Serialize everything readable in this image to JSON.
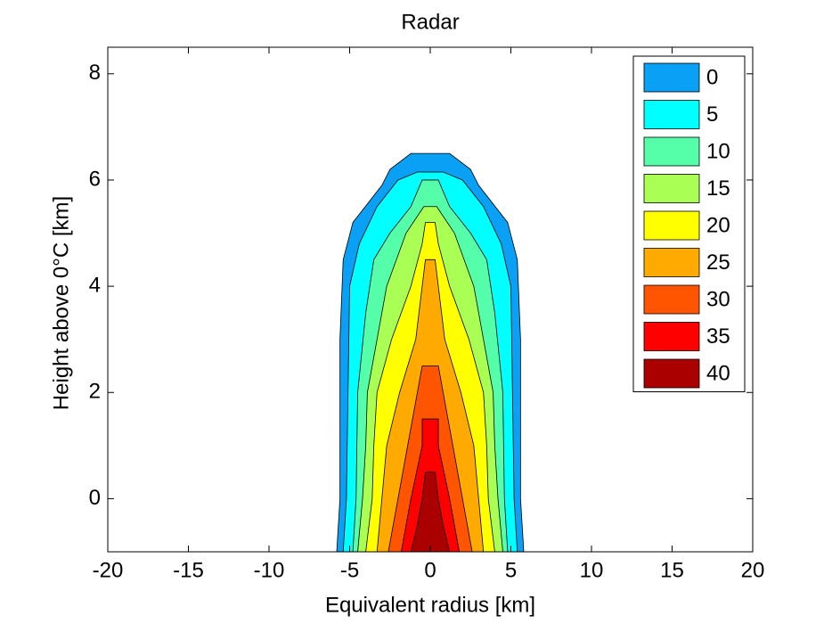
{
  "chart_data": {
    "type": "filled-contour",
    "title": "Radar",
    "x_label": "Equivalent radius [km]",
    "y_label": "Height above 0°C [km]",
    "xlim": [
      -20,
      20
    ],
    "xticks": [
      -20,
      -15,
      -10,
      -5,
      0,
      5,
      10,
      15,
      20
    ],
    "ylim": [
      -1,
      8.5
    ],
    "yticks": [
      0,
      2,
      4,
      6,
      8
    ],
    "legend": "upper right",
    "levels": [
      {
        "name": "0",
        "value": 0,
        "color": "#0aa0f5",
        "heights": [
          -1,
          0,
          3,
          4.5,
          5.2,
          5.9,
          6.2,
          6.5
        ],
        "half_widths": [
          5.8,
          5.6,
          5.6,
          5.4,
          4.8,
          3.0,
          2.5,
          1.2
        ]
      },
      {
        "name": "5",
        "value": 5,
        "color": "#00ffff",
        "heights": [
          -1,
          0,
          2,
          4,
          4.8,
          5.5,
          6.0,
          6.15
        ],
        "half_widths": [
          5.4,
          5.2,
          5.1,
          5.0,
          4.4,
          3.3,
          2.0,
          0.8
        ]
      },
      {
        "name": "10",
        "value": 10,
        "color": "#55ffaa",
        "heights": [
          -1,
          0,
          2,
          3.5,
          4.5,
          5.0,
          5.5,
          6.0
        ],
        "half_widths": [
          4.8,
          4.6,
          4.5,
          4.0,
          3.5,
          2.5,
          1.2,
          0.5
        ]
      },
      {
        "name": "15",
        "value": 15,
        "color": "#aaff55",
        "heights": [
          -1,
          0,
          1,
          2,
          3,
          4,
          5.0,
          5.5
        ],
        "half_widths": [
          4.5,
          4.2,
          4.0,
          3.9,
          3.3,
          2.7,
          1.5,
          0.4
        ]
      },
      {
        "name": "20",
        "value": 20,
        "color": "#ffff00",
        "heights": [
          -1,
          0,
          1,
          2,
          3,
          4,
          4.8,
          5.2
        ],
        "half_widths": [
          4.0,
          3.6,
          3.5,
          3.3,
          2.4,
          1.2,
          0.5,
          0.3
        ]
      },
      {
        "name": "25",
        "value": 25,
        "color": "#ffaa00",
        "heights": [
          -1,
          0,
          1,
          2,
          3,
          4,
          4.5
        ],
        "half_widths": [
          3.3,
          3.0,
          2.7,
          1.9,
          0.9,
          0.5,
          0.3
        ]
      },
      {
        "name": "30",
        "value": 30,
        "color": "#ff5500",
        "heights": [
          -1,
          0,
          1,
          2,
          2.5
        ],
        "half_widths": [
          2.6,
          2.0,
          1.4,
          0.8,
          0.5
        ]
      },
      {
        "name": "35",
        "value": 35,
        "color": "#ff0000",
        "heights": [
          -1,
          0,
          1.0,
          1.5
        ],
        "half_widths": [
          1.8,
          1.2,
          0.5,
          0.5
        ]
      },
      {
        "name": "40",
        "value": 40,
        "color": "#aa0000",
        "heights": [
          -1,
          -0.5,
          0,
          0.5
        ],
        "half_widths": [
          1.2,
          0.8,
          0.5,
          0.3
        ]
      }
    ]
  }
}
